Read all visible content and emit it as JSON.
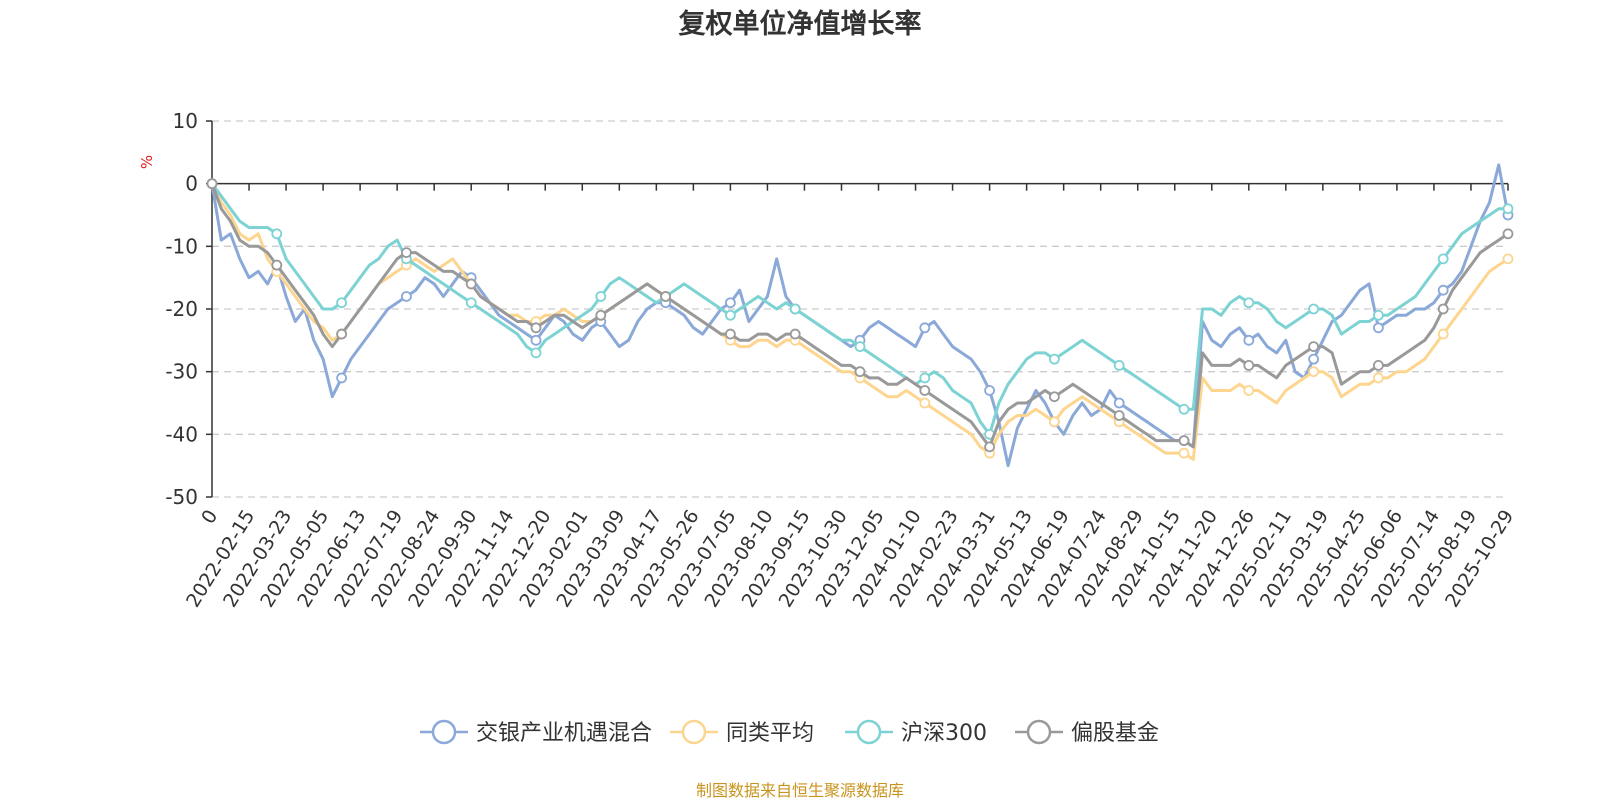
{
  "chart_data": {
    "type": "line",
    "title": "复权单位净值增长率",
    "ylabel": "%",
    "ylim": [
      -50,
      10
    ],
    "yticks": [
      10,
      0,
      -10,
      -20,
      -30,
      -40,
      -50
    ],
    "x_tick_labels": [
      "0",
      "2022-02-15",
      "2022-03-23",
      "2022-05-05",
      "2022-06-13",
      "2022-07-19",
      "2022-08-24",
      "2022-09-30",
      "2022-11-14",
      "2022-12-20",
      "2023-02-01",
      "2023-03-09",
      "2023-04-17",
      "2023-05-26",
      "2023-07-05",
      "2023-08-10",
      "2023-09-15",
      "2023-10-30",
      "2023-12-05",
      "2024-01-10",
      "2024-02-23",
      "2024-03-31",
      "2024-05-13",
      "2024-06-19",
      "2024-07-24",
      "2024-08-29",
      "2024-10-15",
      "2024-11-20",
      "2024-12-26",
      "2025-02-11",
      "2025-03-19",
      "2025-04-25",
      "2025-06-06",
      "2025-07-14",
      "2025-08-19",
      "2025-10-29"
    ],
    "x_index": [
      0,
      1,
      2,
      3,
      4,
      5,
      6,
      7,
      8,
      9,
      10,
      11,
      12,
      13,
      14,
      15,
      16,
      17,
      18,
      19,
      20,
      21,
      22,
      23,
      24,
      25,
      26,
      27,
      28,
      29,
      30,
      31,
      32,
      33,
      34,
      35,
      36,
      37,
      38,
      39,
      40,
      41,
      42,
      43,
      44,
      45,
      46,
      47,
      48,
      49,
      50,
      51,
      52,
      53,
      54,
      55,
      56,
      57,
      58,
      59,
      60,
      61,
      62,
      63,
      64,
      65,
      66,
      67,
      68,
      69,
      70,
      71,
      72,
      73,
      74,
      75,
      76,
      77,
      78,
      79,
      80,
      81,
      82,
      83,
      84,
      85,
      86,
      87,
      88,
      89,
      90,
      91,
      92,
      93,
      94,
      95,
      96,
      97,
      98,
      99,
      100,
      101,
      102,
      103,
      104,
      105,
      106,
      107,
      108,
      109,
      110,
      111,
      112,
      113,
      114,
      115,
      116,
      117,
      118,
      119,
      120,
      121,
      122,
      123,
      124,
      125,
      126,
      127,
      128,
      129,
      130,
      131,
      132,
      133,
      134,
      135,
      136,
      137,
      138,
      139,
      140
    ],
    "grid": true,
    "legend_position": "bottom",
    "series": [
      {
        "name": "交银产业机遇混合",
        "color": "#8aa8d8",
        "values": [
          0,
          -9,
          -8,
          -12,
          -15,
          -14,
          -16,
          -13,
          -18,
          -22,
          -20,
          -25,
          -28,
          -34,
          -31,
          -28,
          -26,
          -24,
          -22,
          -20,
          -19,
          -18,
          -17,
          -15,
          -16,
          -18,
          -16,
          -14,
          -15,
          -17,
          -19,
          -21,
          -22,
          -23,
          -24,
          -25,
          -23,
          -21,
          -22,
          -24,
          -25,
          -23,
          -22,
          -24,
          -26,
          -25,
          -22,
          -20,
          -19,
          -19,
          -20,
          -21,
          -23,
          -24,
          -22,
          -20,
          -19,
          -17,
          -22,
          -20,
          -18,
          -12,
          -18,
          -20,
          -21,
          -22,
          -23,
          -24,
          -25,
          -26,
          -25,
          -23,
          -22,
          -23,
          -24,
          -25,
          -26,
          -23,
          -22,
          -24,
          -26,
          -27,
          -28,
          -30,
          -33,
          -38,
          -45,
          -39,
          -36,
          -33,
          -35,
          -38,
          -40,
          -37,
          -35,
          -37,
          -36,
          -33,
          -35,
          -36,
          -37,
          -38,
          -39,
          -40,
          -41,
          -41,
          -42,
          -22,
          -25,
          -26,
          -24,
          -23,
          -25,
          -24,
          -26,
          -27,
          -25,
          -30,
          -31,
          -28,
          -25,
          -22,
          -21,
          -19,
          -17,
          -16,
          -23,
          -22,
          -21,
          -21,
          -20,
          -20,
          -19,
          -17,
          -16,
          -14,
          -10,
          -6,
          -3,
          3,
          -5
        ]
      },
      {
        "name": "同类平均",
        "color": "#fdd58e",
        "values": [
          0,
          -3,
          -5,
          -8,
          -9,
          -8,
          -12,
          -14,
          -16,
          -18,
          -20,
          -22,
          -23,
          -25,
          -24,
          -22,
          -20,
          -18,
          -16,
          -15,
          -14,
          -13,
          -12,
          -13,
          -14,
          -13,
          -12,
          -14,
          -16,
          -18,
          -19,
          -20,
          -21,
          -21,
          -22,
          -22,
          -21,
          -21,
          -20,
          -21,
          -22,
          -22,
          -21,
          -20,
          -19,
          -18,
          -17,
          -16,
          -17,
          -18,
          -19,
          -20,
          -21,
          -22,
          -23,
          -24,
          -25,
          -26,
          -26,
          -25,
          -25,
          -26,
          -25,
          -25,
          -26,
          -27,
          -28,
          -29,
          -30,
          -30,
          -31,
          -32,
          -33,
          -34,
          -34,
          -33,
          -34,
          -35,
          -36,
          -37,
          -38,
          -39,
          -40,
          -42,
          -43,
          -40,
          -38,
          -37,
          -37,
          -36,
          -37,
          -38,
          -36,
          -35,
          -34,
          -35,
          -36,
          -37,
          -38,
          -39,
          -40,
          -41,
          -42,
          -43,
          -43,
          -43,
          -44,
          -31,
          -33,
          -33,
          -33,
          -32,
          -33,
          -33,
          -34,
          -35,
          -33,
          -32,
          -31,
          -30,
          -30,
          -31,
          -34,
          -33,
          -32,
          -32,
          -31,
          -31,
          -30,
          -30,
          -29,
          -28,
          -26,
          -24,
          -22,
          -20,
          -18,
          -16,
          -14,
          -13,
          -12
        ]
      },
      {
        "name": "沪深300",
        "color": "#7dd3d3",
        "values": [
          0,
          -2,
          -4,
          -6,
          -7,
          -7,
          -7,
          -8,
          -12,
          -14,
          -16,
          -18,
          -20,
          -20,
          -19,
          -17,
          -15,
          -13,
          -12,
          -10,
          -9,
          -12,
          -13,
          -14,
          -15,
          -16,
          -17,
          -18,
          -19,
          -20,
          -21,
          -22,
          -23,
          -24,
          -26,
          -27,
          -25,
          -24,
          -23,
          -22,
          -21,
          -20,
          -18,
          -16,
          -15,
          -16,
          -17,
          -18,
          -19,
          -18,
          -17,
          -16,
          -17,
          -18,
          -19,
          -20,
          -21,
          -20,
          -19,
          -18,
          -19,
          -20,
          -19,
          -20,
          -21,
          -22,
          -23,
          -24,
          -25,
          -25,
          -26,
          -27,
          -28,
          -29,
          -30,
          -31,
          -32,
          -31,
          -30,
          -31,
          -33,
          -34,
          -35,
          -38,
          -40,
          -35,
          -32,
          -30,
          -28,
          -27,
          -27,
          -28,
          -27,
          -26,
          -25,
          -26,
          -27,
          -28,
          -29,
          -30,
          -31,
          -32,
          -33,
          -34,
          -35,
          -36,
          -36,
          -20,
          -20,
          -21,
          -19,
          -18,
          -19,
          -19,
          -20,
          -22,
          -23,
          -22,
          -21,
          -20,
          -20,
          -21,
          -24,
          -23,
          -22,
          -22,
          -21,
          -21,
          -20,
          -19,
          -18,
          -16,
          -14,
          -12,
          -10,
          -8,
          -7,
          -6,
          -5,
          -4,
          -4
        ]
      },
      {
        "name": "偏股基金",
        "color": "#999999",
        "values": [
          0,
          -4,
          -6,
          -9,
          -10,
          -10,
          -11,
          -13,
          -15,
          -17,
          -19,
          -21,
          -24,
          -26,
          -24,
          -22,
          -20,
          -18,
          -16,
          -14,
          -12,
          -11,
          -11,
          -12,
          -13,
          -14,
          -14,
          -15,
          -16,
          -18,
          -19,
          -20,
          -21,
          -22,
          -22,
          -23,
          -22,
          -21,
          -21,
          -22,
          -23,
          -22,
          -21,
          -20,
          -19,
          -18,
          -17,
          -16,
          -17,
          -18,
          -19,
          -20,
          -21,
          -22,
          -23,
          -24,
          -24,
          -25,
          -25,
          -24,
          -24,
          -25,
          -24,
          -24,
          -25,
          -26,
          -27,
          -28,
          -29,
          -29,
          -30,
          -31,
          -31,
          -32,
          -32,
          -31,
          -32,
          -33,
          -34,
          -35,
          -36,
          -37,
          -38,
          -40,
          -42,
          -38,
          -36,
          -35,
          -35,
          -34,
          -33,
          -34,
          -33,
          -32,
          -33,
          -34,
          -35,
          -36,
          -37,
          -38,
          -39,
          -40,
          -41,
          -41,
          -41,
          -41,
          -42,
          -27,
          -29,
          -29,
          -29,
          -28,
          -29,
          -29,
          -30,
          -31,
          -29,
          -28,
          -27,
          -26,
          -26,
          -27,
          -32,
          -31,
          -30,
          -30,
          -29,
          -29,
          -28,
          -27,
          -26,
          -25,
          -23,
          -20,
          -17,
          -15,
          -13,
          -11,
          -10,
          -9,
          -8
        ]
      }
    ],
    "source_note": "制图数据来自恒生聚源数据库"
  }
}
